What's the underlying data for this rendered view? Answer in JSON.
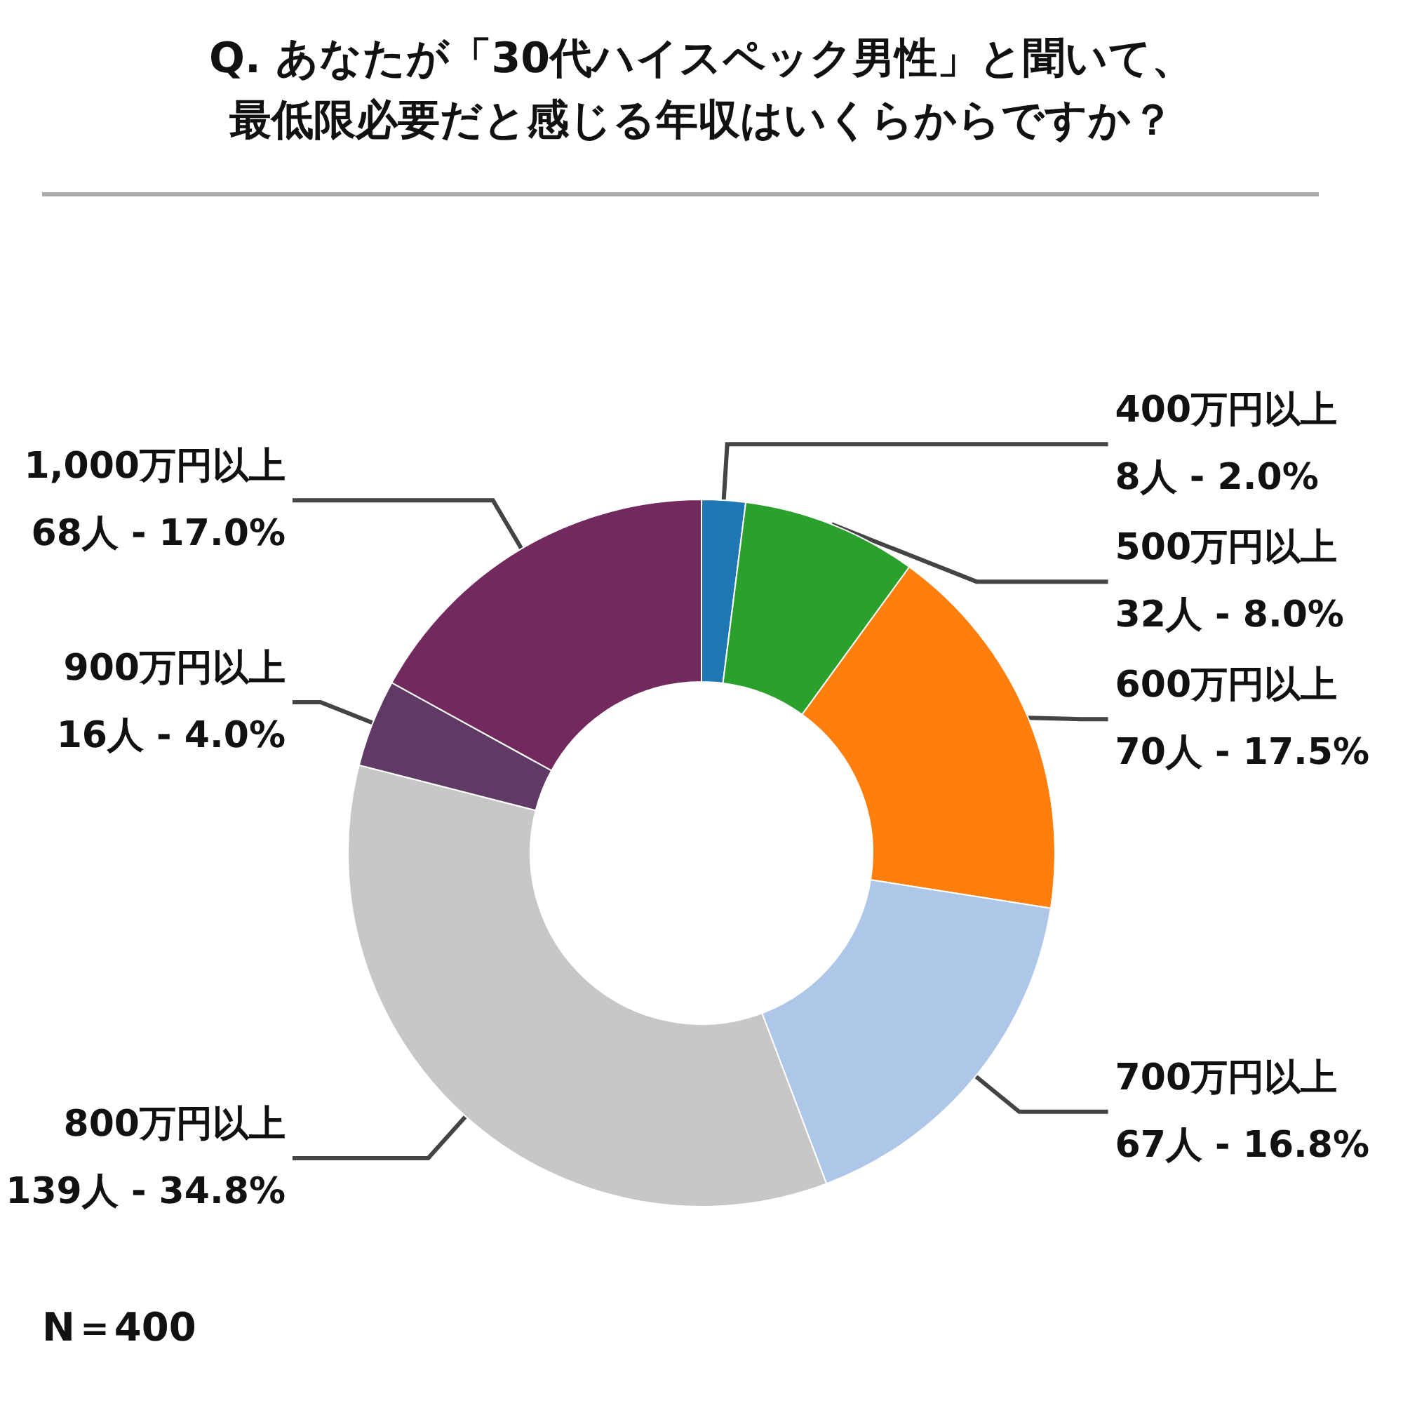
{
  "chart_data": {
    "type": "donut",
    "title": "Q. あなたが「30代ハイスペック男性」と聞いて、",
    "subtitle": "最低限必要だと感じる年収はいくらからですか？",
    "categories": [
      "400万円以上",
      "500万円以上",
      "600万円以上",
      "700万円以上",
      "800万円以上",
      "900万円以上",
      "1,000万円以上"
    ],
    "values": [
      8,
      32,
      70,
      67,
      139,
      16,
      68
    ],
    "colors": [
      "#1f77b4",
      "#2ca02c",
      "#ff7f0e",
      "#aec7e8",
      "#c7c7c7",
      "#5e3a64",
      "#722a5e"
    ],
    "value_labels": [
      "8人 - 2.0%",
      "32人 - 8.0%",
      "70人 - 17.5%",
      "67人 - 16.8%",
      "139人 - 34.8%",
      "16人 - 4.0%",
      "68人 - 17.0%"
    ],
    "annotations": [
      "N＝400"
    ]
  }
}
